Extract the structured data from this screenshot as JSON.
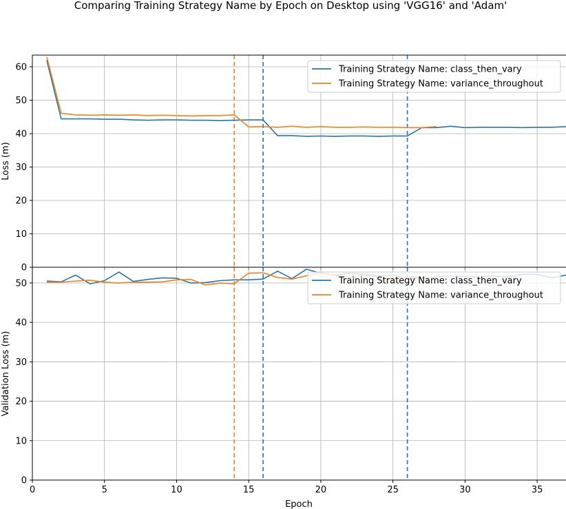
{
  "chart_data": {
    "title": "Comparing Training Strategy Name by Epoch on Desktop using 'VGG16' and 'Adam'",
    "xlabel": "Epoch",
    "xlim": [
      0,
      37
    ],
    "xticks": [
      0,
      5,
      10,
      15,
      20,
      25,
      30,
      35
    ],
    "grid": true,
    "colors": {
      "class_then_vary": "#1f77b4",
      "variance_throughout": "#ff7f0e"
    },
    "panels": [
      {
        "type": "line",
        "ylabel": "Loss (m)",
        "ylim": [
          0,
          63.5
        ],
        "yticks": [
          0,
          10,
          20,
          30,
          40,
          50,
          60
        ],
        "legend_position": "upper right",
        "series": [
          {
            "name": "Training Strategy Name: class_then_vary",
            "color": "#1f77b4",
            "x": [
              1,
              2,
              3,
              4,
              5,
              6,
              7,
              8,
              9,
              10,
              11,
              12,
              13,
              14,
              15,
              16,
              17,
              18,
              19,
              20,
              21,
              22,
              23,
              24,
              25,
              26,
              27,
              28,
              29,
              30,
              31,
              32,
              33,
              34,
              35,
              36,
              37
            ],
            "y": [
              62.0,
              44.4,
              44.4,
              44.4,
              44.3,
              44.3,
              44.1,
              44.0,
              44.1,
              44.1,
              44.0,
              44.0,
              43.9,
              44.0,
              44.1,
              44.1,
              39.4,
              39.4,
              39.2,
              39.3,
              39.2,
              39.3,
              39.3,
              39.2,
              39.3,
              39.3,
              41.8,
              41.8,
              42.2,
              41.8,
              41.9,
              41.9,
              41.9,
              41.8,
              41.9,
              41.9,
              42.1
            ]
          },
          {
            "name": "Training Strategy Name: variance_throughout",
            "color": "#ff7f0e",
            "x": [
              1,
              2,
              3,
              4,
              5,
              6,
              7,
              8,
              9,
              10,
              11,
              12,
              13,
              14,
              15,
              16,
              17,
              18,
              19,
              20,
              21,
              22,
              23,
              24,
              25,
              26,
              27,
              28
            ],
            "y": [
              63.0,
              46.1,
              45.6,
              45.5,
              45.6,
              45.5,
              45.6,
              45.4,
              45.5,
              45.4,
              45.3,
              45.4,
              45.4,
              45.6,
              42.0,
              42.1,
              41.9,
              42.2,
              41.9,
              42.1,
              41.9,
              41.9,
              42.0,
              41.9,
              41.9,
              41.8,
              41.8,
              42.1
            ]
          }
        ],
        "vlines": [
          {
            "x": 14,
            "color": "#ff7f0e",
            "style": "dashed"
          },
          {
            "x": 16,
            "color": "#1f77b4",
            "style": "dashed"
          },
          {
            "x": 26,
            "color": "#1f77b4",
            "style": "dashed"
          }
        ]
      },
      {
        "type": "line",
        "ylabel": "Validation Loss (m)",
        "ylim": [
          0,
          54
        ],
        "yticks": [
          0,
          10,
          20,
          30,
          40,
          50
        ],
        "legend_position": "upper right",
        "series": [
          {
            "name": "Training Strategy Name: class_then_vary",
            "color": "#1f77b4",
            "x": [
              1,
              2,
              3,
              4,
              5,
              6,
              7,
              8,
              9,
              10,
              11,
              12,
              13,
              14,
              15,
              16,
              17,
              18,
              19,
              20,
              21,
              22,
              23,
              24,
              25,
              26,
              27,
              28,
              29,
              30,
              31,
              32,
              33,
              34,
              35,
              36,
              37
            ],
            "y": [
              50.5,
              50.3,
              52.0,
              49.8,
              50.6,
              52.8,
              50.4,
              50.9,
              51.3,
              51.2,
              50.0,
              50.1,
              50.6,
              50.8,
              50.8,
              51.0,
              53.0,
              51.1,
              53.5,
              52.5,
              52.0,
              52.5,
              52.2,
              51.8,
              52.0,
              51.3,
              51.2,
              51.6,
              51.8,
              51.6,
              51.5,
              51.8,
              51.5,
              52.2,
              52.2,
              51.3,
              52.0
            ]
          },
          {
            "name": "Training Strategy Name: variance_throughout",
            "color": "#ff7f0e",
            "x": [
              1,
              2,
              3,
              4,
              5,
              6,
              7,
              8,
              9,
              10,
              11,
              12,
              13,
              14,
              15,
              16,
              17,
              18,
              19,
              20,
              21,
              22,
              23,
              24,
              25,
              26,
              27,
              28
            ],
            "y": [
              50.2,
              50.2,
              50.5,
              50.7,
              50.2,
              50.0,
              50.2,
              50.2,
              50.3,
              50.8,
              50.9,
              49.5,
              50.0,
              49.8,
              52.5,
              52.6,
              51.4,
              51.0,
              51.8,
              52.6,
              51.9,
              51.5,
              52.0,
              51.5,
              51.3,
              51.5,
              51.6,
              51.3
            ]
          }
        ],
        "vlines": [
          {
            "x": 14,
            "color": "#ff7f0e",
            "style": "dashed"
          },
          {
            "x": 16,
            "color": "#1f77b4",
            "style": "dashed"
          },
          {
            "x": 26,
            "color": "#1f77b4",
            "style": "dashed"
          }
        ]
      }
    ]
  }
}
